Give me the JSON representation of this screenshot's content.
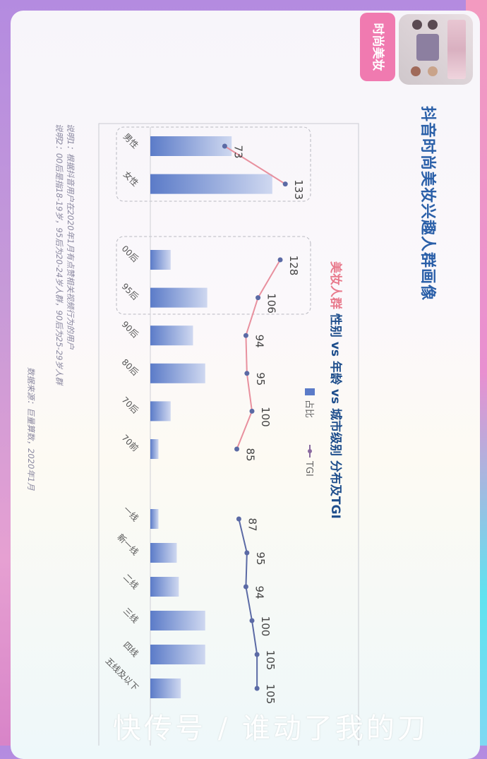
{
  "header": {
    "tag": "时尚美妆",
    "title": "抖音时尚美妆兴趣人群画像"
  },
  "notes": {
    "note1": "说明1：根据抖音用户在2020年1月有点赞相关视频行为的用户",
    "note2": "说明2：00后是指18-19岁，95后为20-24岁人群，90后为25-29岁人群",
    "source": "数据来源：巨量算数，2020年1月"
  },
  "watermark": "快传号 / 谁动了我的刀",
  "colors": {
    "title": "#2a5fa8",
    "highlight": "#e87a8c",
    "bar": "#5b7bc8",
    "tgi_pink": "#e8909e",
    "tgi_blue": "#5b6aa5"
  },
  "chart_data": {
    "type": "bar+line",
    "title_highlight": "美妆人群",
    "title": " 性别 vs 年龄 vs 城市级别 分布及TGI",
    "legend": [
      "占比",
      "TGI"
    ],
    "legend_position": "top-right",
    "groups": [
      {
        "name": "gender",
        "categories": [
          "男性",
          "女性"
        ],
        "share_pct": [
          40,
          60
        ],
        "tgi": [
          73,
          133
        ],
        "line_color": "pink"
      },
      {
        "name": "age",
        "categories": [
          "00后",
          "95后",
          "90后",
          "80后",
          "70后",
          "70前"
        ],
        "share_pct": [
          10,
          28,
          21,
          27,
          10,
          4
        ],
        "tgi": [
          128,
          106,
          94,
          95,
          100,
          85
        ],
        "line_color": "pink"
      },
      {
        "name": "city",
        "categories": [
          "一线",
          "新一线",
          "二线",
          "三线",
          "四线",
          "五线及以下"
        ],
        "share_pct": [
          4,
          13,
          14,
          27,
          27,
          15
        ],
        "tgi": [
          87,
          95,
          94,
          100,
          105,
          105
        ],
        "line_color": "blue"
      }
    ],
    "orientation": "rotated 90° clockwise"
  }
}
